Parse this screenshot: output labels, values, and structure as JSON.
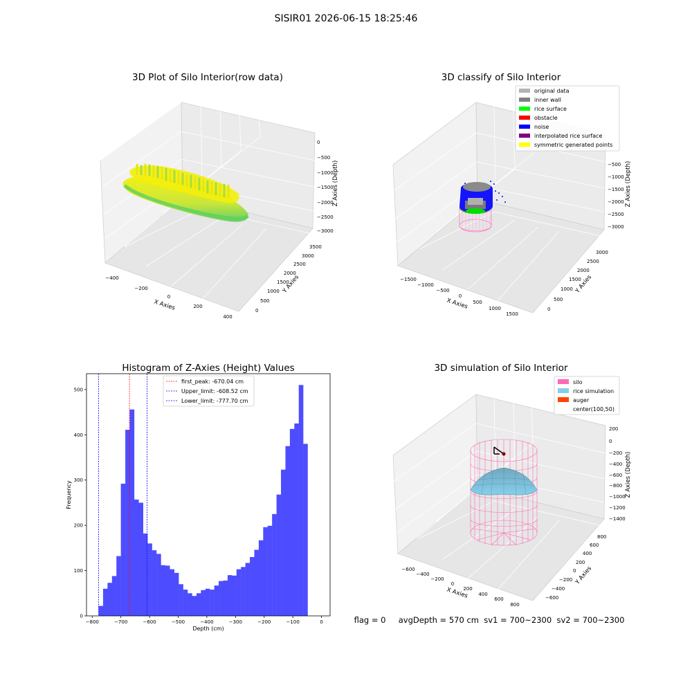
{
  "suptitle": "SISIR01 2026-06-15 18:25:46",
  "panels": {
    "raw": {
      "title": "3D Plot of Silo Interior(row data)",
      "xlabel": "X Axies",
      "ylabel": "Y Axies",
      "zlabel": "Z Axies (Depth)",
      "xticks": [
        "−400",
        "−200",
        "0",
        "200",
        "400"
      ],
      "yticks": [
        "0",
        "500",
        "1000",
        "1500",
        "2000",
        "2500",
        "3000",
        "3500"
      ],
      "zticks": [
        "0",
        "−500",
        "−1000",
        "−1500",
        "−2000",
        "−2500",
        "−3000"
      ],
      "colors": {
        "low": "#5fcf5f",
        "high": "#f3f00a"
      }
    },
    "classify": {
      "title": "3D classify of Silo Interior",
      "xlabel": "X Axies",
      "ylabel": "Y Axies",
      "zlabel": "Z Axies (Depth)",
      "xticks": [
        "−1500",
        "−1000",
        "−500",
        "0",
        "500",
        "1000",
        "1500"
      ],
      "yticks": [
        "0",
        "500",
        "1000",
        "1500",
        "2000",
        "2500",
        "3000"
      ],
      "zticks": [
        "−500",
        "−1000",
        "−1500",
        "−2000",
        "−2500",
        "−3000"
      ],
      "legend": [
        {
          "label": "original data",
          "color": "#b4b4b4"
        },
        {
          "label": "inner wall",
          "color": "#808080"
        },
        {
          "label": "rice surface",
          "color": "#00ff00"
        },
        {
          "label": "obstacle",
          "color": "#ff0000"
        },
        {
          "label": "noise",
          "color": "#0000ff"
        },
        {
          "label": "interpolated rice surface",
          "color": "#800080"
        },
        {
          "label": "symmetric generated points",
          "color": "#ffff00"
        }
      ]
    },
    "simulation": {
      "title": "3D simulation of Silo Interior",
      "xlabel": "X Axies",
      "ylabel": "Y Axies",
      "zlabel": "Z Axies (Depth)",
      "xticks": [
        "−600",
        "−400",
        "−200",
        "0",
        "200",
        "400",
        "600",
        "800"
      ],
      "yticks": [
        "−600",
        "−400",
        "−200",
        "0",
        "200",
        "400",
        "600",
        "800"
      ],
      "zticks": [
        "200",
        "0",
        "−200",
        "−400",
        "−600",
        "−800",
        "−1000",
        "−1200",
        "−1400"
      ],
      "legend": [
        {
          "label": "silo",
          "color": "#ff69b4"
        },
        {
          "label": "rice simulation",
          "color": "#87ceeb"
        },
        {
          "label": "auger",
          "color": "#ff4500"
        },
        {
          "label": "center(100,50)",
          "color": "#ffffff"
        }
      ]
    }
  },
  "status_line": "flag = 0     avgDepth = 570 cm  sv1 = 700~2300  sv2 = 700~2300",
  "chart_data": {
    "type": "bar",
    "title": "Histogram of Z-Axies (Height) Values",
    "xlabel": "Depth (cm)",
    "ylabel": "Frequency",
    "xlim": [
      -820,
      30
    ],
    "ylim": [
      0,
      535
    ],
    "xticks": [
      -800,
      -700,
      -600,
      -500,
      -400,
      -300,
      -200,
      -100,
      0
    ],
    "xtick_labels": [
      "−800",
      "−700",
      "−600",
      "−500",
      "−400",
      "−300",
      "−200",
      "−100",
      "0"
    ],
    "yticks": [
      0,
      100,
      200,
      300,
      400,
      500
    ],
    "bar_color": "#4d4dff",
    "bin_start": -777.7,
    "bin_width": 15.52,
    "values": [
      22,
      60,
      73,
      88,
      132,
      292,
      411,
      456,
      257,
      250,
      182,
      160,
      145,
      137,
      112,
      111,
      103,
      95,
      70,
      58,
      50,
      44,
      50,
      57,
      60,
      58,
      67,
      77,
      78,
      90,
      89,
      103,
      108,
      117,
      130,
      146,
      167,
      196,
      199,
      225,
      268,
      323,
      375,
      413,
      425,
      510,
      380
    ],
    "vlines": [
      {
        "x": -670.04,
        "color": "#ff0000",
        "label": "first_peak: -670.04 cm"
      },
      {
        "x": -608.52,
        "color": "#0000ff",
        "label": "Upper_limit: -608.52 cm"
      },
      {
        "x": -777.7,
        "color": "#0000ff",
        "label": "Lower_limit: -777.70 cm"
      }
    ],
    "legend_position": "upper-center",
    "grid": false
  }
}
